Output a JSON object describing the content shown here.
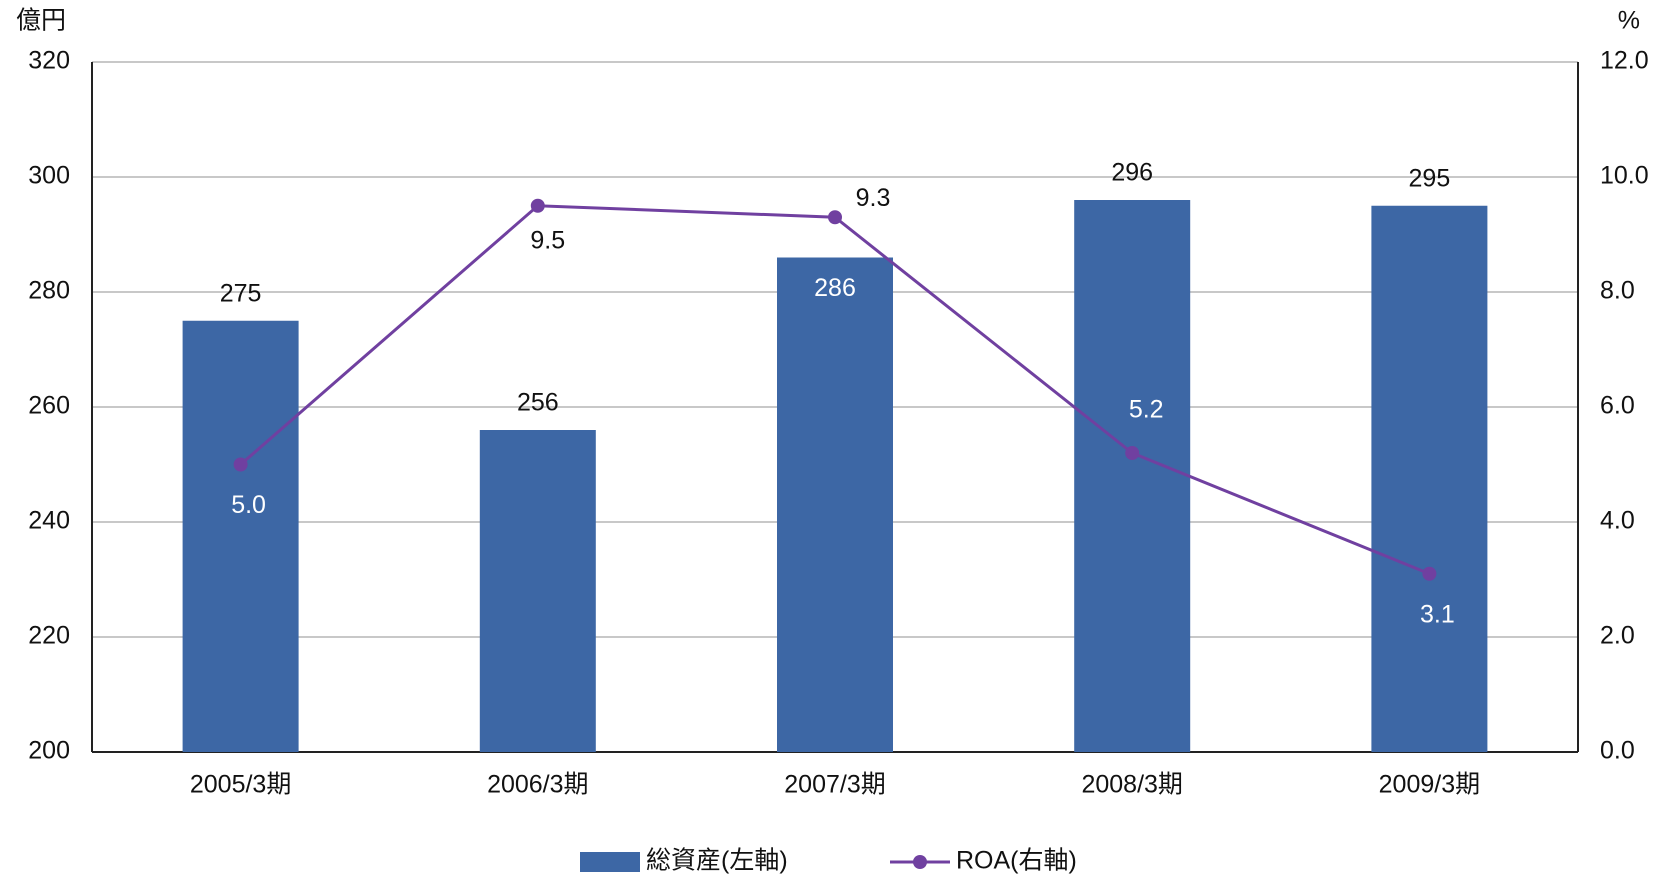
{
  "chart_data": {
    "type": "bar_line",
    "y_label": "億円",
    "y2_label": "%",
    "categories": [
      "2005/3期",
      "2006/3期",
      "2007/3期",
      "2008/3期",
      "2009/3期"
    ],
    "series": [
      {
        "name": "総資産(左軸)",
        "color": "#3d67a5",
        "type": "bar",
        "values": [
          275,
          256,
          286,
          296,
          295
        ]
      },
      {
        "name": "ROA(右軸)",
        "color": "#7040a0",
        "type": "line",
        "axis": "y2",
        "values": [
          5.0,
          9.5,
          9.3,
          5.2,
          3.1
        ],
        "value_labels": [
          "5.0",
          "9.5",
          "9.3",
          "5.2",
          "3.1"
        ]
      }
    ],
    "ylim": [
      200,
      320
    ],
    "yticks": [
      200,
      220,
      240,
      260,
      280,
      300,
      320
    ],
    "y2lim": [
      0,
      12
    ],
    "y2ticks": [
      {
        "value": 0,
        "label": "0.0"
      },
      {
        "value": 2,
        "label": "2.0"
      },
      {
        "value": 4,
        "label": "4.0"
      },
      {
        "value": 6,
        "label": "6.0"
      },
      {
        "value": 8,
        "label": "8.0"
      },
      {
        "value": 10,
        "label": "10.0"
      },
      {
        "value": 12,
        "label": "12.0"
      }
    ],
    "grid": true,
    "legend": "bottom"
  }
}
